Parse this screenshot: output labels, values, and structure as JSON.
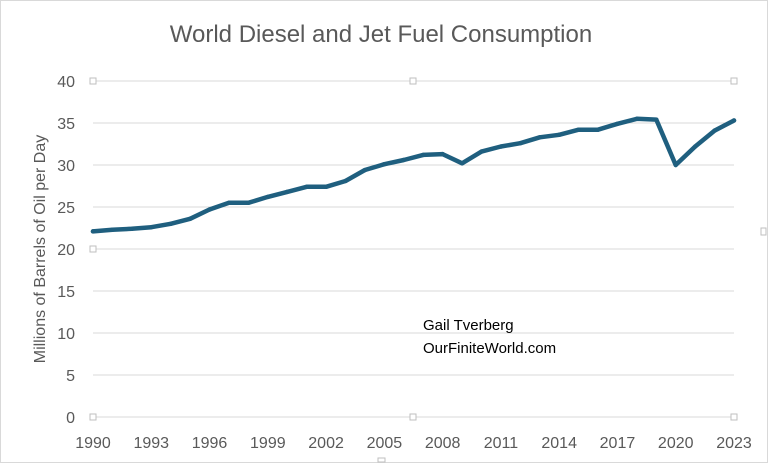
{
  "chart_data": {
    "type": "line",
    "title": "World Diesel and Jet Fuel Consumption",
    "xlabel": "",
    "ylabel": "Millions of Barrels of Oil per Day",
    "ylim": [
      0,
      40
    ],
    "yticks": [
      0,
      5,
      10,
      15,
      20,
      25,
      30,
      35,
      40
    ],
    "xlim": [
      1990,
      2023
    ],
    "xticks": [
      "1990",
      "1993",
      "1996",
      "1999",
      "2002",
      "2005",
      "2008",
      "2011",
      "2014",
      "2017",
      "2020",
      "2023"
    ],
    "grid": "horizontal",
    "legend": "none",
    "annotations": [
      "Gail Tverberg",
      "OurFiniteWorld.com"
    ],
    "series": [
      {
        "color": "#1f5f7f",
        "x": [
          1990,
          1991,
          1992,
          1993,
          1994,
          1995,
          1996,
          1997,
          1998,
          1999,
          2000,
          2001,
          2002,
          2003,
          2004,
          2005,
          2006,
          2007,
          2008,
          2009,
          2010,
          2011,
          2012,
          2013,
          2014,
          2015,
          2016,
          2017,
          2018,
          2019,
          2020,
          2021,
          2022,
          2023
        ],
        "values": [
          22.1,
          22.3,
          22.4,
          22.6,
          23.0,
          23.6,
          24.7,
          25.5,
          25.5,
          26.2,
          26.8,
          27.4,
          27.4,
          28.1,
          29.4,
          30.1,
          30.6,
          31.2,
          31.3,
          30.2,
          31.6,
          32.2,
          32.6,
          33.3,
          33.6,
          34.2,
          34.2,
          34.9,
          35.5,
          35.4,
          30.0,
          32.2,
          34.1,
          35.3
        ]
      }
    ]
  },
  "colors": {
    "line": "#1f5f7f",
    "grid": "#d9d9d9",
    "text": "#595959",
    "annotation": "#000000"
  }
}
